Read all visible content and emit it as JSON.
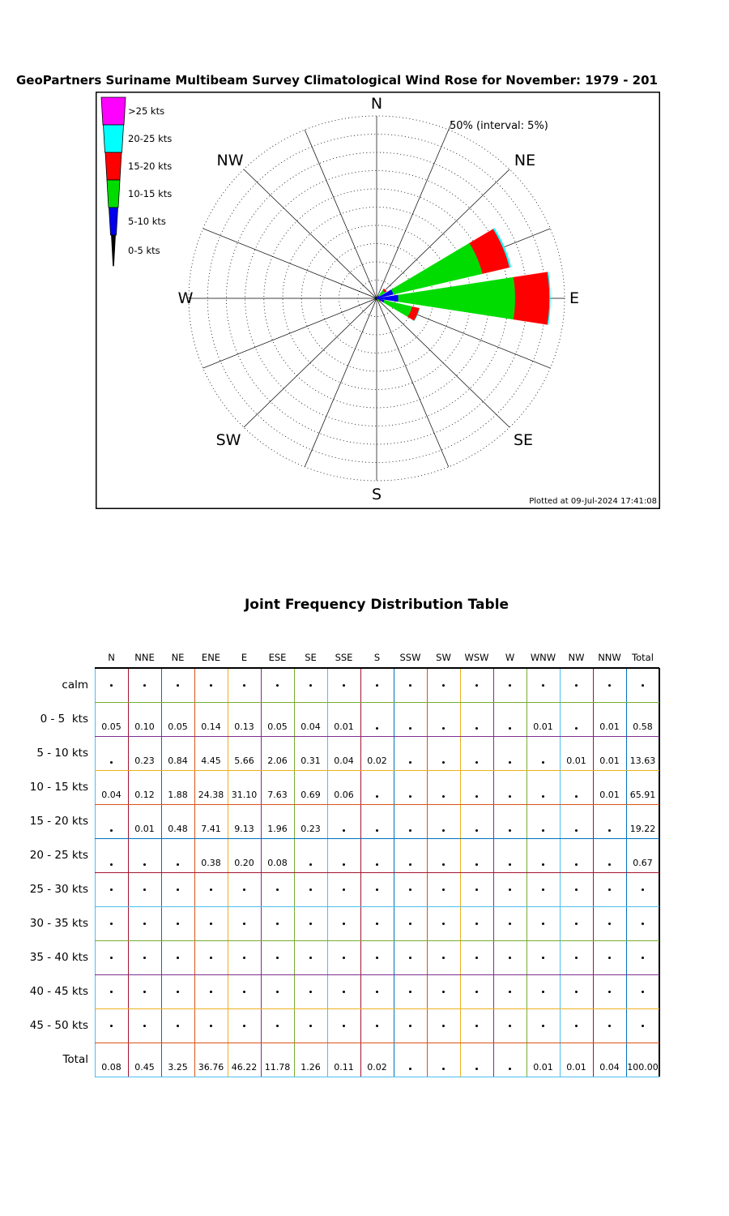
{
  "page_title": "GeoPartners Suriname Multibeam Survey Climatological Wind Rose for November: 1979 - 201",
  "rose_panel": {
    "annotation": "50% (interval: 5%)",
    "plotted_at": "Plotted at 09-Jul-2024 17:41:08",
    "compass_labels": [
      "N",
      "NE",
      "E",
      "SE",
      "S",
      "SW",
      "W",
      "NW"
    ],
    "legend_items": [
      {
        "label": ">25 kts",
        "color": "#ff00ff"
      },
      {
        "label": "20-25 kts",
        "color": "#00ffff"
      },
      {
        "label": "15-20 kts",
        "color": "#ff0000"
      },
      {
        "label": "10-15 kts",
        "color": "#00dc00"
      },
      {
        "label": "5-10 kts",
        "color": "#0000ee"
      },
      {
        "label": "0-5 kts",
        "color": "#000000"
      }
    ]
  },
  "chart_data": {
    "type": "wind_rose",
    "title": "GeoPartners Suriname Multibeam Survey Climatological Wind Rose for November: 1979 - 201",
    "max_radius_pct": 50,
    "ring_interval_pct": 5,
    "grid": "dotted-rings-16-spokes",
    "directions": [
      "N",
      "NNE",
      "NE",
      "ENE",
      "E",
      "ESE",
      "SE",
      "SSE",
      "S",
      "SSW",
      "SW",
      "WSW",
      "W",
      "WNW",
      "NW",
      "NNW"
    ],
    "speed_bins": [
      "0-5 kts",
      "5-10 kts",
      "10-15 kts",
      "15-20 kts",
      "20-25 kts",
      ">25 kts"
    ],
    "bin_colors": [
      "#000000",
      "#0000ee",
      "#00dc00",
      "#ff0000",
      "#00ffff",
      "#ff00ff"
    ],
    "frequencies_pct": [
      [
        0.05,
        0,
        0.04,
        0,
        0,
        0
      ],
      [
        0.1,
        0.23,
        0.12,
        0.01,
        0,
        0
      ],
      [
        0.05,
        0.84,
        1.88,
        0.48,
        0,
        0
      ],
      [
        0.14,
        4.45,
        24.38,
        7.41,
        0.38,
        0
      ],
      [
        0.13,
        5.66,
        31.1,
        9.13,
        0.2,
        0
      ],
      [
        0.05,
        2.06,
        7.63,
        1.96,
        0.08,
        0
      ],
      [
        0.04,
        0.31,
        0.69,
        0.23,
        0,
        0
      ],
      [
        0.01,
        0.04,
        0.06,
        0,
        0,
        0
      ],
      [
        0,
        0.02,
        0,
        0,
        0,
        0
      ],
      [
        0,
        0,
        0,
        0,
        0,
        0
      ],
      [
        0,
        0,
        0,
        0,
        0,
        0
      ],
      [
        0,
        0,
        0,
        0,
        0,
        0
      ],
      [
        0,
        0,
        0,
        0,
        0,
        0
      ],
      [
        0.01,
        0,
        0,
        0,
        0,
        0
      ],
      [
        0,
        0.01,
        0,
        0,
        0,
        0
      ],
      [
        0.01,
        0.01,
        0.01,
        0,
        0,
        0
      ]
    ]
  },
  "table": {
    "title": "Joint Frequency Distribution Table",
    "columns": [
      "N",
      "NNE",
      "NE",
      "ENE",
      "E",
      "ESE",
      "SE",
      "SSE",
      "S",
      "SSW",
      "SW",
      "WSW",
      "W",
      "WNW",
      "NW",
      "NNW",
      "Total"
    ],
    "rows": [
      {
        "label": "calm",
        "values": [
          null,
          null,
          null,
          null,
          null,
          null,
          null,
          null,
          null,
          null,
          null,
          null,
          null,
          null,
          null,
          null,
          null
        ]
      },
      {
        "label": "0 - 5  kts",
        "values": [
          "0.05",
          "0.10",
          "0.05",
          "0.14",
          "0.13",
          "0.05",
          "0.04",
          "0.01",
          null,
          null,
          null,
          null,
          null,
          "0.01",
          null,
          "0.01",
          "0.58"
        ]
      },
      {
        "label": "5 - 10 kts",
        "values": [
          null,
          "0.23",
          "0.84",
          "4.45",
          "5.66",
          "2.06",
          "0.31",
          "0.04",
          "0.02",
          null,
          null,
          null,
          null,
          null,
          "0.01",
          "0.01",
          "13.63"
        ]
      },
      {
        "label": "10 - 15 kts",
        "values": [
          "0.04",
          "0.12",
          "1.88",
          "24.38",
          "31.10",
          "7.63",
          "0.69",
          "0.06",
          null,
          null,
          null,
          null,
          null,
          null,
          null,
          "0.01",
          "65.91"
        ]
      },
      {
        "label": "15 - 20 kts",
        "values": [
          null,
          "0.01",
          "0.48",
          "7.41",
          "9.13",
          "1.96",
          "0.23",
          null,
          null,
          null,
          null,
          null,
          null,
          null,
          null,
          null,
          "19.22"
        ]
      },
      {
        "label": "20 - 25 kts",
        "values": [
          null,
          null,
          null,
          "0.38",
          "0.20",
          "0.08",
          null,
          null,
          null,
          null,
          null,
          null,
          null,
          null,
          null,
          null,
          "0.67"
        ]
      },
      {
        "label": "25 - 30 kts",
        "values": [
          null,
          null,
          null,
          null,
          null,
          null,
          null,
          null,
          null,
          null,
          null,
          null,
          null,
          null,
          null,
          null,
          null
        ]
      },
      {
        "label": "30 - 35 kts",
        "values": [
          null,
          null,
          null,
          null,
          null,
          null,
          null,
          null,
          null,
          null,
          null,
          null,
          null,
          null,
          null,
          null,
          null
        ]
      },
      {
        "label": "35 - 40 kts",
        "values": [
          null,
          null,
          null,
          null,
          null,
          null,
          null,
          null,
          null,
          null,
          null,
          null,
          null,
          null,
          null,
          null,
          null
        ]
      },
      {
        "label": "40 - 45 kts",
        "values": [
          null,
          null,
          null,
          null,
          null,
          null,
          null,
          null,
          null,
          null,
          null,
          null,
          null,
          null,
          null,
          null,
          null
        ]
      },
      {
        "label": "45 - 50 kts",
        "values": [
          null,
          null,
          null,
          null,
          null,
          null,
          null,
          null,
          null,
          null,
          null,
          null,
          null,
          null,
          null,
          null,
          null
        ]
      },
      {
        "label": "Total",
        "values": [
          "0.08",
          "0.45",
          "3.25",
          "36.76",
          "46.22",
          "11.78",
          "1.26",
          "0.11",
          "0.02",
          null,
          null,
          null,
          null,
          "0.01",
          "0.01",
          "0.04",
          "100.00"
        ]
      }
    ],
    "grid_line_colors": {
      "vertical": [
        "#4DBEEE",
        "#A2142F",
        "#0072BD",
        "#D95319",
        "#EDB120",
        "#7E2F8E",
        "#77AC30",
        "#4DBEEE",
        "#A2142F",
        "#0072BD",
        "#D95319",
        "#EDB120",
        "#7E2F8E",
        "#77AC30",
        "#4DBEEE",
        "#A2142F",
        "#0072BD",
        "#000000"
      ],
      "horizontal": [
        "#000000",
        "#77AC30",
        "#7E2F8E",
        "#EDB120",
        "#D95319",
        "#0072BD",
        "#A2142F",
        "#4DBEEE",
        "#77AC30",
        "#7E2F8E",
        "#EDB120",
        "#D95319",
        "#4DBEEE"
      ]
    }
  }
}
